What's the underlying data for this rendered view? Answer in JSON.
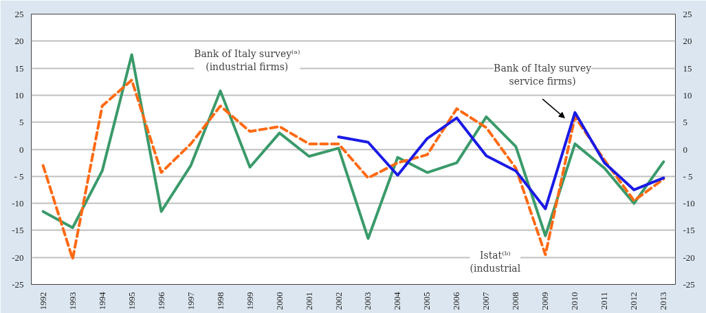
{
  "chart_data": {
    "type": "line",
    "x": [
      1992,
      1993,
      1994,
      1995,
      1996,
      1997,
      1998,
      1999,
      2000,
      2001,
      2002,
      2003,
      2004,
      2005,
      2006,
      2007,
      2008,
      2009,
      2010,
      2011,
      2012,
      2013
    ],
    "series": [
      {
        "color": "#3a9a6a",
        "line_style": "solid",
        "values": [
          -11.5,
          -14.5,
          -4,
          17.5,
          -11.5,
          -3,
          10.8,
          -3.3,
          3,
          -1.3,
          0.2,
          -16.5,
          -1.5,
          -4.3,
          -2.5,
          6,
          0.5,
          -16,
          1,
          -3.5,
          -10,
          -2.3
        ]
      },
      {
        "color": "#ff6a13",
        "line_style": "dashed",
        "values": [
          -3,
          -20.3,
          8,
          12.8,
          -4.3,
          1,
          8,
          3.3,
          4.2,
          1,
          1,
          -5.3,
          -2.5,
          -1,
          7.5,
          4,
          -3.5,
          -19.5,
          6,
          -2,
          -9.5,
          -5.5
        ]
      },
      {
        "color": "#1a1ae6",
        "line_style": "solid",
        "values": [
          null,
          null,
          null,
          null,
          null,
          null,
          null,
          null,
          null,
          null,
          2.3,
          1.3,
          -4.8,
          2,
          5.8,
          -1.2,
          -4,
          -11,
          6.8,
          -2.5,
          -7.5,
          -5.3
        ]
      }
    ],
    "xlim": [
      1991.6,
      2013.4
    ],
    "xticks": [
      1992,
      1993,
      1994,
      1995,
      1996,
      1997,
      1998,
      1999,
      2000,
      2001,
      2002,
      2003,
      2004,
      2005,
      2006,
      2007,
      2008,
      2009,
      2010,
      2011,
      2012,
      2013
    ],
    "ylim": [
      -25,
      25
    ],
    "yticks": [
      -25,
      -20,
      -15,
      -10,
      {
        "value": -5,
        "label": "- 5"
      },
      0,
      5,
      10,
      15,
      20,
      25
    ],
    "y2lim": [
      -25,
      25
    ],
    "y2ticks": [
      -25,
      -20,
      -15,
      -10,
      {
        "value": -5,
        "label": "- 5"
      },
      0,
      5,
      10,
      15,
      20,
      25
    ],
    "grid": "y",
    "marker": "none",
    "annotations": [
      "Bank of Italy survey⁽ᵃ⁾\n(industrial firms)",
      "Bank of Italy survey\nservice firms)",
      "Istat⁽ᵇ⁾\n(industrial"
    ]
  }
}
